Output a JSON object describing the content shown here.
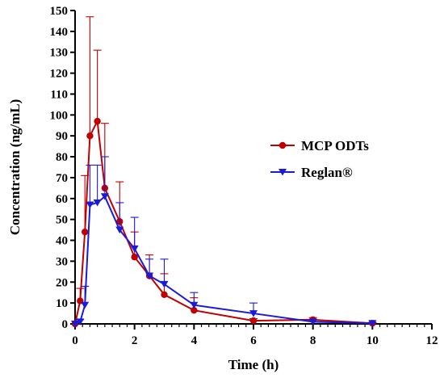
{
  "chart_data": {
    "type": "line",
    "title": "",
    "xlabel": "Time (h)",
    "ylabel": "Concentration (ng/mL)",
    "xlim": [
      0,
      12
    ],
    "ylim": [
      0,
      150
    ],
    "x_ticks": [
      0,
      2,
      4,
      6,
      8,
      10,
      12
    ],
    "x_tick_labels": [
      "0",
      "2",
      "4",
      "6",
      "8",
      "10",
      "12"
    ],
    "y_ticks": [
      0,
      10,
      20,
      30,
      40,
      50,
      60,
      70,
      80,
      90,
      100,
      110,
      120,
      130,
      140,
      150
    ],
    "y_tick_labels": [
      "0",
      "10",
      "20",
      "30",
      "40",
      "50",
      "60",
      "70",
      "80",
      "90",
      "100",
      "110",
      "120",
      "130",
      "140",
      "150"
    ],
    "grid": false,
    "legend_position": "right",
    "series": [
      {
        "name": "MCP ODTs",
        "color": "#c00000",
        "marker": "circle",
        "points": [
          {
            "x": 0,
            "y": 0,
            "err": 0
          },
          {
            "x": 0.17,
            "y": 11,
            "err": 6
          },
          {
            "x": 0.33,
            "y": 44,
            "err": 27
          },
          {
            "x": 0.5,
            "y": 90,
            "err": 57
          },
          {
            "x": 0.75,
            "y": 97,
            "err": 34
          },
          {
            "x": 1,
            "y": 65,
            "err": 31
          },
          {
            "x": 1.5,
            "y": 49,
            "err": 19
          },
          {
            "x": 2,
            "y": 32,
            "err": 12
          },
          {
            "x": 2.5,
            "y": 23,
            "err": 10
          },
          {
            "x": 3,
            "y": 14,
            "err": 10
          },
          {
            "x": 4,
            "y": 6.5,
            "err": 6
          },
          {
            "x": 6,
            "y": 1.5,
            "err": 1
          },
          {
            "x": 8,
            "y": 2,
            "err": 1
          },
          {
            "x": 10,
            "y": 0.3,
            "err": 0.5
          }
        ]
      },
      {
        "name": "Reglan®",
        "color": "#1a1adb",
        "marker": "triangle-down",
        "points": [
          {
            "x": 0,
            "y": 0,
            "err": 0
          },
          {
            "x": 0.17,
            "y": 1,
            "err": 1
          },
          {
            "x": 0.33,
            "y": 9,
            "err": 9
          },
          {
            "x": 0.5,
            "y": 57,
            "err": 19
          },
          {
            "x": 0.75,
            "y": 58,
            "err": 18
          },
          {
            "x": 1,
            "y": 61,
            "err": 19
          },
          {
            "x": 1.5,
            "y": 45,
            "err": 13
          },
          {
            "x": 2,
            "y": 36,
            "err": 15
          },
          {
            "x": 2.5,
            "y": 23,
            "err": 8
          },
          {
            "x": 3,
            "y": 19,
            "err": 12
          },
          {
            "x": 4,
            "y": 9,
            "err": 6
          },
          {
            "x": 6,
            "y": 5,
            "err": 5
          },
          {
            "x": 8,
            "y": 1,
            "err": 1
          },
          {
            "x": 10,
            "y": 0.3,
            "err": 0.3
          }
        ]
      }
    ]
  }
}
